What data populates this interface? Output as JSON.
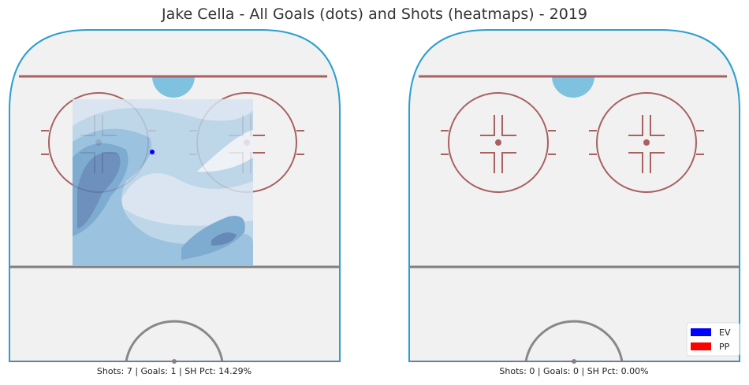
{
  "title": "Jake Cella - All Goals (dots) and Shots (heatmaps) - 2019",
  "panels": [
    {
      "caption": "Shots: 7 | Goals: 1 | SH Pct: 14.29%"
    },
    {
      "caption": "Shots: 0 | Goals: 0 | SH Pct: 0.00%"
    }
  ],
  "legend": [
    {
      "label": "EV",
      "color": "#0000ff"
    },
    {
      "label": "PP",
      "color": "#ff0000"
    }
  ]
}
